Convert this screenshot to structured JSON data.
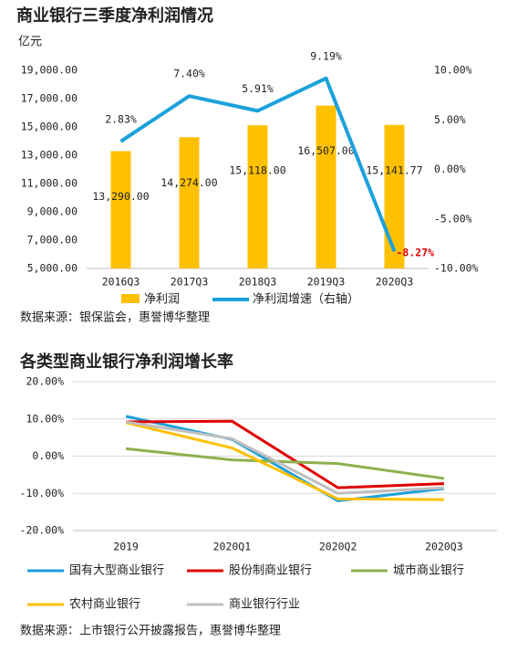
{
  "chart_data": [
    {
      "type": "combo",
      "title": "商业银行三季度净利润情况",
      "unit": "亿元",
      "categories": [
        "2016Q3",
        "2017Q3",
        "2018Q3",
        "2019Q3",
        "2020Q3"
      ],
      "ylim": [
        5000,
        19000
      ],
      "yticks": [
        {
          "value": 5000,
          "label": "5,000.00"
        },
        {
          "value": 7000,
          "label": "7,000.00"
        },
        {
          "value": 9000,
          "label": "9,000.00"
        },
        {
          "value": 11000,
          "label": "11,000.00"
        },
        {
          "value": 13000,
          "label": "13,000.00"
        },
        {
          "value": 15000,
          "label": "15,000.00"
        },
        {
          "value": 17000,
          "label": "17,000.00"
        },
        {
          "value": 19000,
          "label": "19,000.00"
        }
      ],
      "y2lim": [
        -10,
        10
      ],
      "y2ticks": [
        {
          "value": -10,
          "label": "-10.00%"
        },
        {
          "value": -5,
          "label": "-5.00%"
        },
        {
          "value": 0,
          "label": "0.00%"
        },
        {
          "value": 5,
          "label": "5.00%"
        },
        {
          "value": 10,
          "label": "10.00%"
        }
      ],
      "grid": false,
      "series": [
        {
          "name": "净利润",
          "type": "bar",
          "color": "#ffc000",
          "values": [
            13290,
            14274,
            15118,
            16507,
            15141.77
          ],
          "value_labels": [
            "13,290.00",
            "14,274.00",
            "15,118.00",
            "16,507.00",
            "15,141.77"
          ]
        },
        {
          "name": "净利润增速（右轴）",
          "type": "line",
          "axis": "y2",
          "color": "#1ba1db",
          "values": [
            2.83,
            7.4,
            5.91,
            9.19,
            -8.27
          ],
          "value_labels": [
            "2.83%",
            "7.40%",
            "5.91%",
            "9.19%",
            "-8.27%"
          ]
        }
      ],
      "source": "数据来源：银保监会，惠誉博华整理"
    },
    {
      "type": "line",
      "title": "各类型商业银行净利润增长率",
      "categories": [
        "2019",
        "2020Q1",
        "2020Q2",
        "2020Q3"
      ],
      "ylim": [
        -20,
        20
      ],
      "yticks": [
        {
          "value": -20,
          "label": "-20.00%"
        },
        {
          "value": -10,
          "label": "-10.00%"
        },
        {
          "value": 0,
          "label": "0.00%"
        },
        {
          "value": 10,
          "label": "10.00%"
        },
        {
          "value": 20,
          "label": "20.00%"
        }
      ],
      "grid": true,
      "series": [
        {
          "name": "国有大型商业银行",
          "color": "#1ba1db",
          "values": [
            10.7,
            4.5,
            -12.0,
            -8.7
          ]
        },
        {
          "name": "股份制商业银行",
          "color": "#e00000",
          "values": [
            9.2,
            9.4,
            -8.5,
            -7.4
          ]
        },
        {
          "name": "城市商业银行",
          "color": "#8db04d",
          "values": [
            2.0,
            -1.0,
            -2.0,
            -6.0
          ]
        },
        {
          "name": "农村商业银行",
          "color": "#ffc000",
          "values": [
            9.0,
            2.2,
            -11.5,
            -11.7
          ]
        },
        {
          "name": "商业银行行业",
          "color": "#bfbfbf",
          "values": [
            9.2,
            4.7,
            -10.0,
            -8.5
          ]
        }
      ],
      "source": "数据来源：上市银行公开披露报告，惠誉博华整理"
    }
  ]
}
